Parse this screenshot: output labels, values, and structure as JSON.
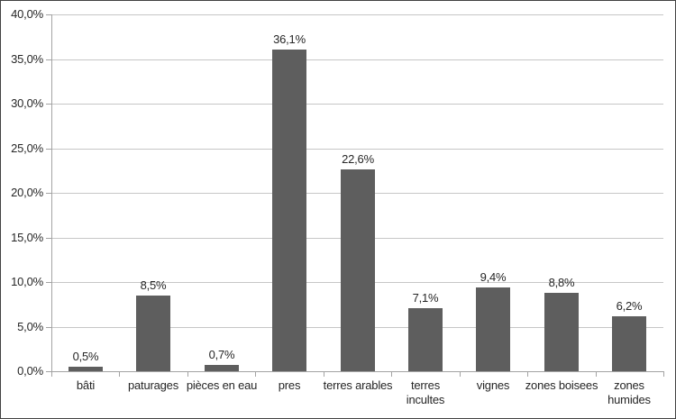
{
  "figure": {
    "background_color": "#ffffff",
    "border_color": "#414141"
  },
  "chart_data": {
    "type": "bar",
    "title": "",
    "xlabel": "",
    "ylabel": "",
    "legend_position": "none",
    "grid": true,
    "categories": [
      "bâti",
      "paturages",
      "pièces en eau",
      "pres",
      "terres arables",
      "terres incultes",
      "vignes",
      "zones boisees",
      "zones humides"
    ],
    "category_display": [
      "bâti",
      "paturages",
      "pièces en eau",
      "pres",
      "terres arables",
      "terres\nincultes",
      "vignes",
      "zones boisees",
      "zones\nhumides"
    ],
    "values": [
      0.5,
      8.5,
      0.7,
      36.1,
      22.6,
      7.1,
      9.4,
      8.8,
      6.2
    ],
    "data_labels": [
      "0,5%",
      "8,5%",
      "0,7%",
      "36,1%",
      "22,6%",
      "7,1%",
      "9,4%",
      "8,8%",
      "6,2%"
    ],
    "y_axis": {
      "min": 0,
      "max": 40,
      "step": 5,
      "tick_labels_top_to_bottom": [
        "40,0%",
        "35,0%",
        "30,0%",
        "25,0%",
        "20,0%",
        "15,0%",
        "10,0%",
        "5,0%",
        "0,0%"
      ]
    },
    "colors": {
      "bar": "#5e5e5e",
      "gridline": "#c6c6c6",
      "axis": "#a3a3a3",
      "text": "#262626"
    }
  }
}
